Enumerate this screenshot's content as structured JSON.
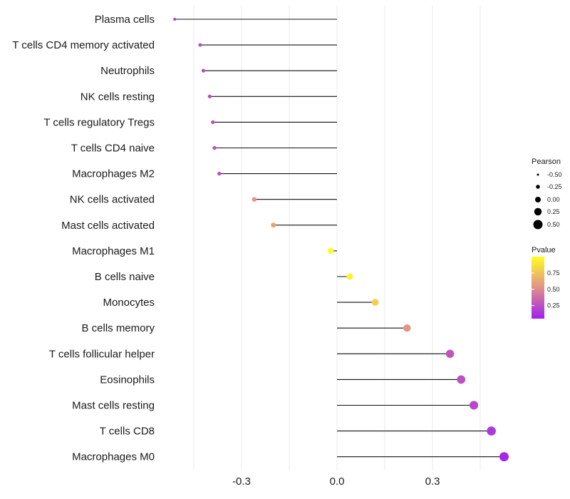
{
  "chart_data": {
    "type": "lollipop",
    "title": "",
    "xlabel": "",
    "ylabel": "",
    "xlim": [
      -0.6,
      0.55
    ],
    "xticks": [
      -0.3,
      0.0,
      0.3
    ],
    "xtick_labels": [
      "-0.3",
      "0.0",
      "0.3"
    ],
    "grid": true,
    "categories": [
      "Plasma cells",
      "T cells CD4 memory activated",
      "Neutrophils",
      "NK cells resting",
      "T cells regulatory  Tregs",
      "T cells CD4 naive",
      "Macrophages M2",
      "NK cells activated",
      "Mast cells activated",
      "Macrophages M1",
      "B cells naive",
      "Monocytes",
      "B cells memory",
      "T cells follicular helper",
      "Eosinophils",
      "Mast cells resting",
      "T cells CD8",
      "Macrophages M0"
    ],
    "values": [
      -0.51,
      -0.43,
      -0.42,
      -0.4,
      -0.39,
      -0.385,
      -0.37,
      -0.26,
      -0.2,
      -0.02,
      0.04,
      0.12,
      0.22,
      0.355,
      0.39,
      0.43,
      0.485,
      0.525
    ],
    "pvalues": [
      0.2,
      0.22,
      0.22,
      0.24,
      0.25,
      0.25,
      0.27,
      0.55,
      0.6,
      0.98,
      0.95,
      0.8,
      0.55,
      0.28,
      0.26,
      0.22,
      0.15,
      0.08
    ],
    "legend": {
      "size": {
        "title": "Pearson",
        "labels": [
          "-0.50",
          "-0.25",
          "0.00",
          "0.25",
          "0.50"
        ],
        "values": [
          -0.5,
          -0.25,
          0.0,
          0.25,
          0.5
        ]
      },
      "color": {
        "title": "Pvalue",
        "labels": [
          "0.75",
          "0.50",
          "0.25"
        ],
        "values": [
          0.75,
          0.5,
          0.25
        ],
        "range": [
          0.05,
          1.0
        ],
        "low_color": "#a020f0",
        "mid_color": "#e0908a",
        "high_color": "#ffff20"
      }
    }
  }
}
